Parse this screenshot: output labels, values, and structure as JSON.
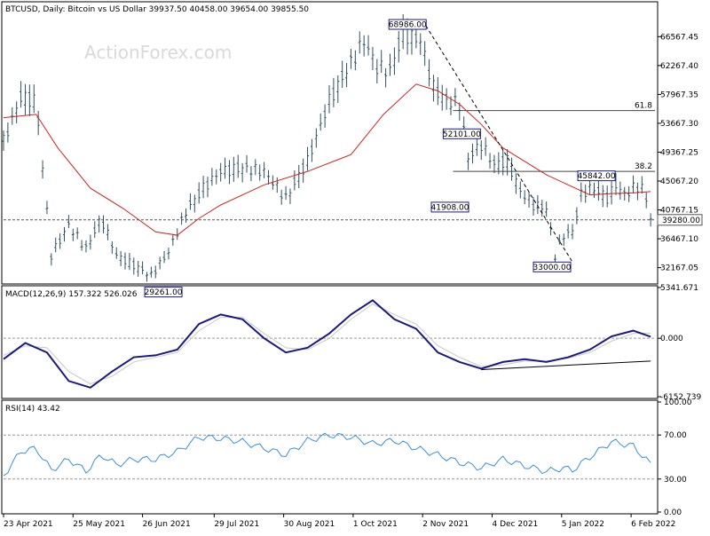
{
  "chart_data": [
    {
      "type": "ohlc",
      "title": "BTCUSD, Daily:  Bitcoin vs US Dollar  39937.50 40458.00 39654.00 39855.50",
      "watermark": "ActionForex.com",
      "ylim": [
        30000,
        71500
      ],
      "y_ticks": [
        "66567.45",
        "62267.40",
        "57967.35",
        "53667.30",
        "49367.25",
        "45067.20",
        "40767.15",
        "36467.10",
        "32167.05"
      ],
      "x_ticks": [
        "23 Apr 2021",
        "25 May 2021",
        "26 Jun 2021",
        "29 Jul 2021",
        "30 Aug 2021",
        "1 Oct 2021",
        "2 Nov 2021",
        "4 Dec 2021",
        "5 Jan 2022",
        "6 Feb 2022"
      ],
      "x_tick_days": [
        0,
        32,
        64,
        97,
        129,
        161,
        193,
        225,
        257,
        289
      ],
      "current_price": "39280.00",
      "series": [
        {
          "role": "price",
          "color": "#2f4f5f",
          "x": [
            0,
            8,
            15,
            22,
            30,
            38,
            45,
            52,
            60,
            68,
            76,
            84,
            92,
            100,
            110,
            120,
            130,
            140,
            150,
            158,
            166,
            172,
            178,
            184,
            192,
            198,
            204,
            210,
            214,
            220,
            226,
            232,
            238,
            244,
            250,
            254,
            258,
            262,
            266,
            270,
            274,
            278,
            282,
            286,
            290,
            294,
            298
          ],
          "y": [
            51000,
            57500,
            57000,
            34000,
            38500,
            35000,
            39500,
            34000,
            32500,
            31000,
            34500,
            40500,
            44000,
            46500,
            47000,
            46500,
            42500,
            48000,
            57000,
            61500,
            66000,
            62000,
            61500,
            67000,
            66000,
            59000,
            57000,
            56500,
            48500,
            50500,
            47500,
            48000,
            43500,
            41500,
            41000,
            34000,
            37000,
            37500,
            43000,
            44000,
            43500,
            42500,
            44500,
            43000,
            44000,
            44200,
            39855
          ]
        },
        {
          "role": "ma",
          "color": "#cc2222",
          "x": [
            0,
            15,
            25,
            40,
            55,
            70,
            80,
            90,
            100,
            120,
            140,
            160,
            175,
            190,
            200,
            210,
            220,
            230,
            240,
            250,
            260,
            270,
            280,
            290,
            298
          ],
          "y": [
            54500,
            55000,
            50000,
            44000,
            41000,
            37500,
            37000,
            39500,
            41500,
            44500,
            46500,
            49000,
            55000,
            59500,
            58500,
            56500,
            53500,
            50000,
            48000,
            46000,
            44500,
            43000,
            43200,
            43300,
            43500
          ]
        }
      ],
      "hlines": [
        {
          "label": "61.8",
          "value": 55550
        },
        {
          "label": "38.2",
          "value": 46500
        },
        {
          "label": "",
          "value": 39280
        }
      ],
      "price_labels": [
        {
          "text": "68986.00",
          "x": 193,
          "value": 68986
        },
        {
          "text": "52101.00",
          "x": 218,
          "value": 52101
        },
        {
          "text": "45842.00",
          "x": 280,
          "value": 45842
        },
        {
          "text": "41908.00",
          "x": 215,
          "value": 41908
        },
        {
          "text": "33000.00",
          "x": 262,
          "value": 33000
        },
        {
          "text": "29261.00",
          "x": 83,
          "value": 29261
        }
      ],
      "trendline": {
        "x": [
          193,
          262
        ],
        "y": [
          68986,
          33000
        ]
      }
    },
    {
      "type": "line",
      "title": "MACD(12,26,9) 157.322 526.026",
      "ylim": [
        -6152.739,
        5341.671
      ],
      "y_ticks": [
        "5341.671",
        "0.000",
        "-6152.739"
      ],
      "series": [
        {
          "name": "MACD",
          "color": "#1a1a80",
          "x": [
            0,
            10,
            20,
            30,
            40,
            50,
            60,
            70,
            80,
            90,
            100,
            110,
            120,
            130,
            140,
            150,
            160,
            170,
            180,
            190,
            200,
            210,
            220,
            230,
            240,
            250,
            260,
            270,
            280,
            290,
            298
          ],
          "y": [
            -2200,
            -500,
            -1500,
            -4500,
            -5200,
            -3500,
            -2000,
            -1800,
            -1200,
            1500,
            2500,
            2000,
            0,
            -1500,
            -1000,
            500,
            2500,
            4000,
            2000,
            1000,
            -1500,
            -2500,
            -3200,
            -2500,
            -2200,
            -2500,
            -2000,
            -1200,
            200,
            800,
            157
          ]
        },
        {
          "name": "Signal",
          "color": "#c8c8c8",
          "x": [
            0,
            10,
            20,
            30,
            40,
            50,
            60,
            70,
            80,
            90,
            100,
            110,
            120,
            130,
            140,
            150,
            160,
            170,
            180,
            190,
            200,
            210,
            220,
            230,
            240,
            250,
            260,
            270,
            280,
            290,
            298
          ],
          "y": [
            -1800,
            -800,
            -1000,
            -3500,
            -4800,
            -4000,
            -2500,
            -2000,
            -1500,
            800,
            2200,
            2200,
            500,
            -1000,
            -1200,
            0,
            2000,
            3600,
            2500,
            1500,
            -800,
            -2000,
            -3000,
            -2800,
            -2400,
            -2400,
            -2100,
            -1500,
            -300,
            500,
            526
          ]
        }
      ],
      "trendline": {
        "x": [
          220,
          298
        ],
        "y": [
          -3300,
          -2400
        ]
      }
    },
    {
      "type": "line",
      "title": "RSI(14) 43.42",
      "ylim": [
        0,
        100
      ],
      "y_ticks": [
        "100.00",
        "70.00",
        "30.00",
        "0.00"
      ],
      "series": [
        {
          "name": "RSI",
          "color": "#3a8fd6",
          "x": [
            0,
            8,
            15,
            22,
            30,
            38,
            45,
            52,
            60,
            70,
            80,
            90,
            100,
            110,
            120,
            130,
            140,
            150,
            160,
            170,
            180,
            190,
            200,
            210,
            220,
            230,
            240,
            250,
            258,
            262,
            270,
            280,
            290,
            298
          ],
          "y": [
            33,
            55,
            58,
            38,
            48,
            37,
            52,
            43,
            48,
            48,
            55,
            68,
            67,
            64,
            58,
            52,
            65,
            70,
            68,
            62,
            65,
            58,
            52,
            45,
            40,
            48,
            42,
            37,
            40,
            38,
            50,
            64,
            60,
            43.42
          ]
        }
      ]
    }
  ]
}
